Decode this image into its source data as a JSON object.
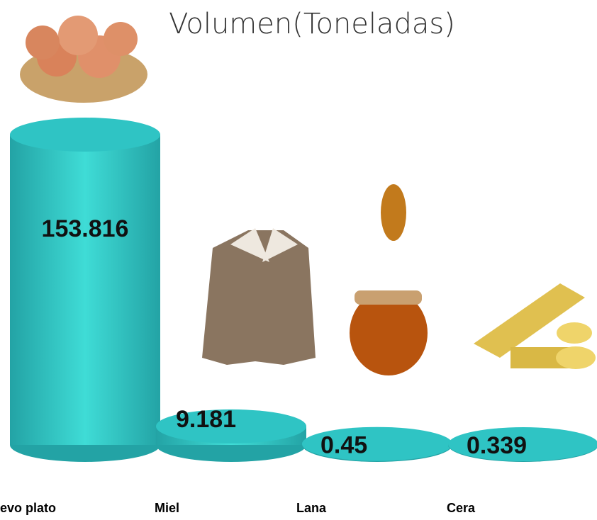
{
  "chart_data": {
    "type": "bar",
    "title": "Volumen(Toneladas)",
    "categories": [
      "evo plato",
      "Miel",
      "Lana",
      "Cera"
    ],
    "values": [
      153.816,
      9.181,
      0.45,
      0.339
    ],
    "color": "#2fc4c4"
  }
}
